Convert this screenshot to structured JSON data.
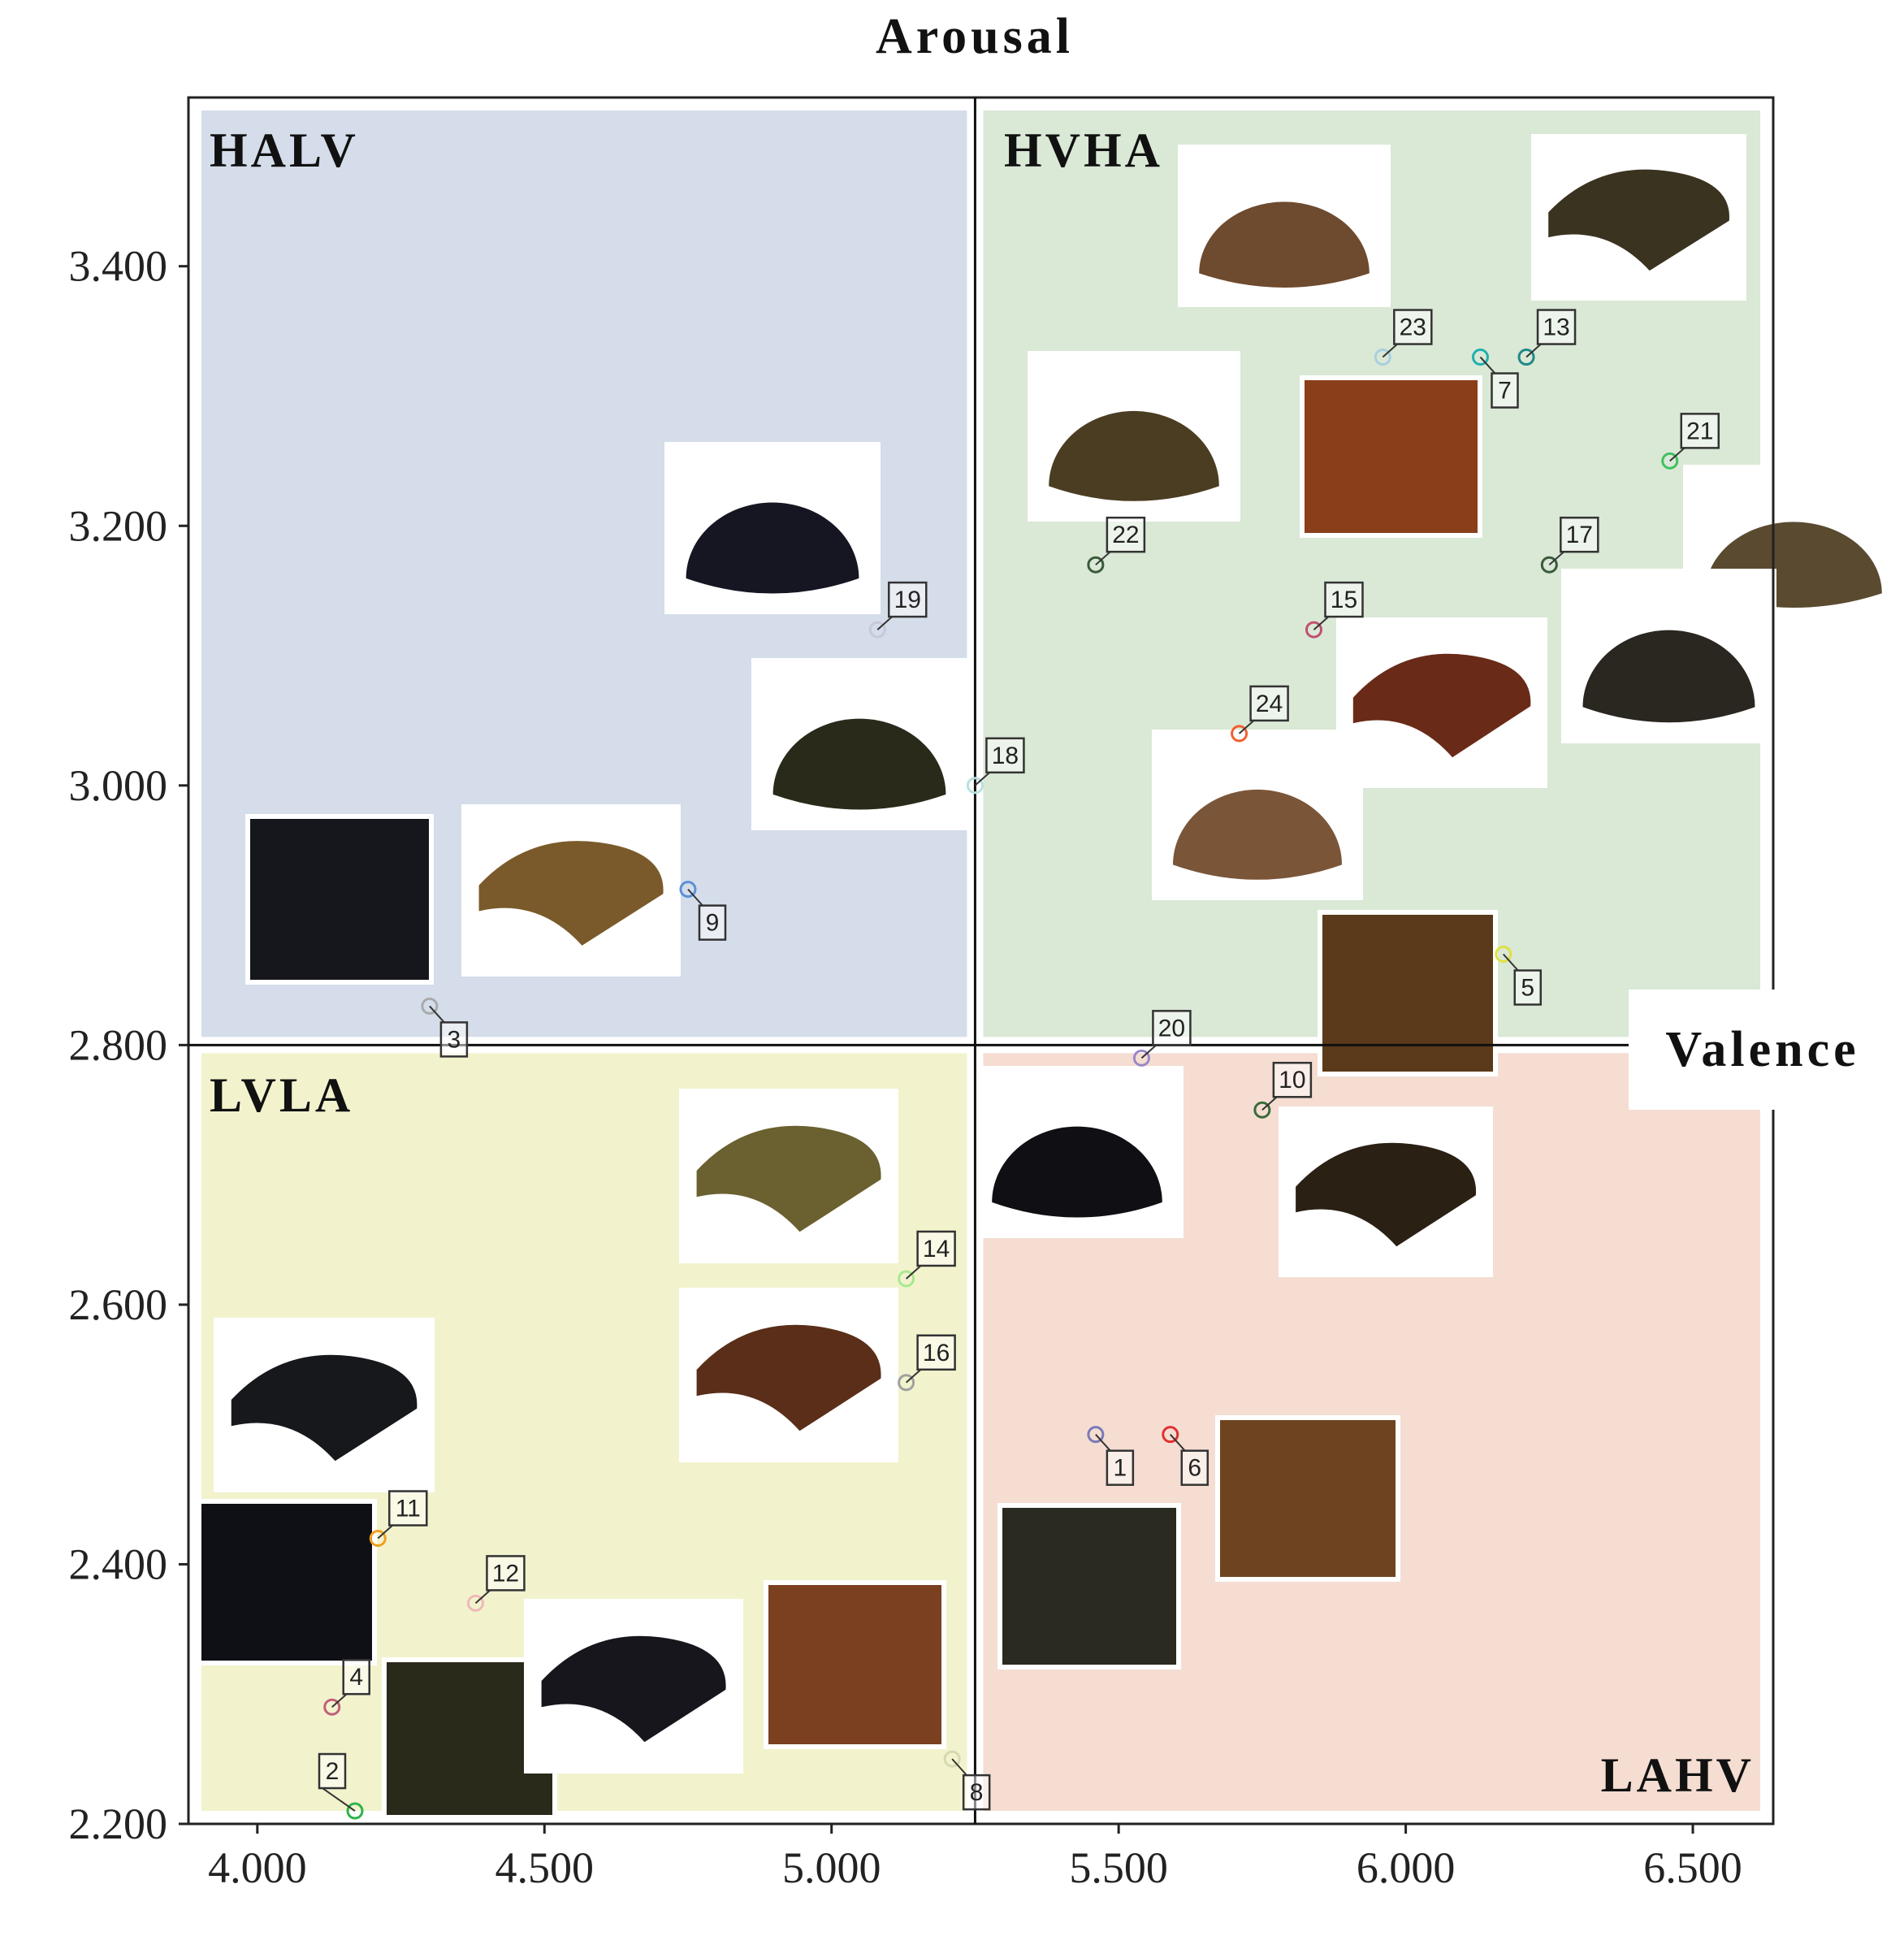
{
  "chart_data": {
    "type": "scatter",
    "title": "",
    "xlabel": "Valence",
    "ylabel": "Arousal",
    "xlim": [
      3.88,
      6.64
    ],
    "ylim": [
      2.2,
      3.53
    ],
    "x_ticks": [
      "4.000",
      "4.500",
      "5.000",
      "5.500",
      "6.000",
      "6.500"
    ],
    "x_tick_values": [
      4.0,
      4.5,
      5.0,
      5.5,
      6.0,
      6.5
    ],
    "y_ticks": [
      "2.200",
      "2.400",
      "2.600",
      "2.800",
      "3.000",
      "3.200",
      "3.400"
    ],
    "y_tick_values": [
      2.2,
      2.4,
      2.6,
      2.8,
      3.0,
      3.2,
      3.4
    ],
    "divider": {
      "x": 5.25,
      "y": 2.8
    },
    "quadrants": [
      {
        "label": "HALV",
        "color": "#d4dde9"
      },
      {
        "label": "HVHA",
        "color": "#dae8d6"
      },
      {
        "label": "LVLA",
        "color": "#f2f3cd"
      },
      {
        "label": "LAHV",
        "color": "#f5ddd2"
      }
    ],
    "points": [
      {
        "label": "1",
        "x": 5.46,
        "y": 2.5,
        "color": "#7a7ab8"
      },
      {
        "label": "2",
        "x": 4.17,
        "y": 2.21,
        "color": "#2db34a"
      },
      {
        "label": "3",
        "x": 4.3,
        "y": 2.83,
        "color": "#aaaaaa"
      },
      {
        "label": "4",
        "x": 4.13,
        "y": 2.29,
        "color": "#c0607a"
      },
      {
        "label": "5",
        "x": 6.17,
        "y": 2.87,
        "color": "#e0e040"
      },
      {
        "label": "6",
        "x": 5.59,
        "y": 2.5,
        "color": "#e03030"
      },
      {
        "label": "7",
        "x": 6.13,
        "y": 3.33,
        "color": "#20b0b0"
      },
      {
        "label": "8",
        "x": 5.21,
        "y": 2.25,
        "color": "#d8d8b0"
      },
      {
        "label": "9",
        "x": 4.75,
        "y": 2.92,
        "color": "#5a90d8"
      },
      {
        "label": "10",
        "x": 5.75,
        "y": 2.75,
        "color": "#3a6a3a"
      },
      {
        "label": "11",
        "x": 4.21,
        "y": 2.42,
        "color": "#f0a020"
      },
      {
        "label": "12",
        "x": 4.38,
        "y": 2.37,
        "color": "#f0b8b8"
      },
      {
        "label": "13",
        "x": 6.21,
        "y": 3.33,
        "color": "#208888"
      },
      {
        "label": "14",
        "x": 5.13,
        "y": 2.62,
        "color": "#a8e890"
      },
      {
        "label": "15",
        "x": 5.84,
        "y": 3.12,
        "color": "#c05070"
      },
      {
        "label": "16",
        "x": 5.13,
        "y": 2.54,
        "color": "#a0a0a0"
      },
      {
        "label": "17",
        "x": 6.25,
        "y": 3.17,
        "color": "#3a5a3a"
      },
      {
        "label": "18",
        "x": 5.25,
        "y": 3.0,
        "color": "#b8e0e0"
      },
      {
        "label": "19",
        "x": 5.08,
        "y": 3.12,
        "color": "#c8c8d8"
      },
      {
        "label": "20",
        "x": 5.54,
        "y": 2.79,
        "color": "#9a88c8"
      },
      {
        "label": "21",
        "x": 6.46,
        "y": 3.25,
        "color": "#40c060"
      },
      {
        "label": "22",
        "x": 5.46,
        "y": 3.17,
        "color": "#3a5a3a"
      },
      {
        "label": "23",
        "x": 5.96,
        "y": 3.33,
        "color": "#a8d0e0"
      },
      {
        "label": "24",
        "x": 5.71,
        "y": 3.04,
        "color": "#f06030"
      }
    ]
  }
}
